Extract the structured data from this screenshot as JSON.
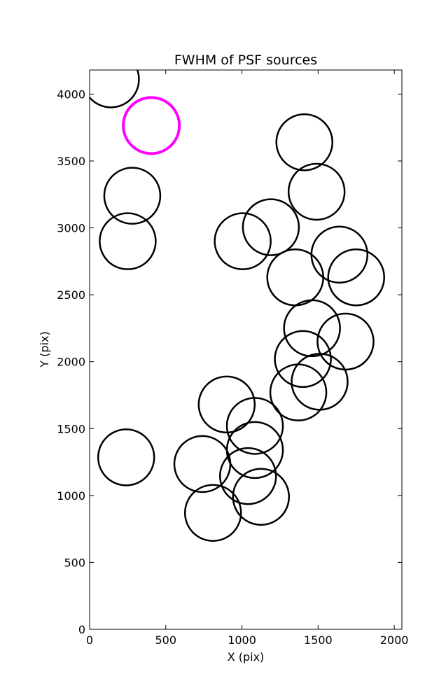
{
  "chart_data": {
    "type": "scatter",
    "title": "FWHM of PSF sources",
    "xlabel": "X (pix)",
    "ylabel": "Y (pix)",
    "xlim": [
      0,
      2050
    ],
    "ylim": [
      0,
      4180
    ],
    "xticks": [
      "0",
      "500",
      "1000",
      "1500",
      "2000"
    ],
    "yticks": [
      "0",
      "500",
      "1000",
      "1500",
      "2000",
      "2500",
      "3000",
      "3500",
      "4000"
    ],
    "grid": false,
    "marker": "open-circle",
    "colors": {
      "default": "#000000",
      "highlight": "#ff00ff"
    },
    "series": [
      {
        "points": [
          {
            "x": 140,
            "y": 4110
          },
          {
            "x": 280,
            "y": 3240
          },
          {
            "x": 250,
            "y": 2900
          },
          {
            "x": 240,
            "y": 1285
          },
          {
            "x": 740,
            "y": 1235
          },
          {
            "x": 810,
            "y": 870
          },
          {
            "x": 900,
            "y": 1680
          },
          {
            "x": 1005,
            "y": 2900
          },
          {
            "x": 1040,
            "y": 1145
          },
          {
            "x": 1085,
            "y": 1520
          },
          {
            "x": 1085,
            "y": 1340
          },
          {
            "x": 1125,
            "y": 990
          },
          {
            "x": 1190,
            "y": 3005
          },
          {
            "x": 1350,
            "y": 2630
          },
          {
            "x": 1370,
            "y": 1770
          },
          {
            "x": 1400,
            "y": 2020
          },
          {
            "x": 1410,
            "y": 3640
          },
          {
            "x": 1460,
            "y": 2250
          },
          {
            "x": 1490,
            "y": 3270
          },
          {
            "x": 1510,
            "y": 1850
          },
          {
            "x": 1640,
            "y": 2800
          },
          {
            "x": 1680,
            "y": 2150
          },
          {
            "x": 1750,
            "y": 2630
          }
        ]
      },
      {
        "highlight": true,
        "points": [
          {
            "x": 405,
            "y": 3765
          }
        ]
      }
    ]
  }
}
